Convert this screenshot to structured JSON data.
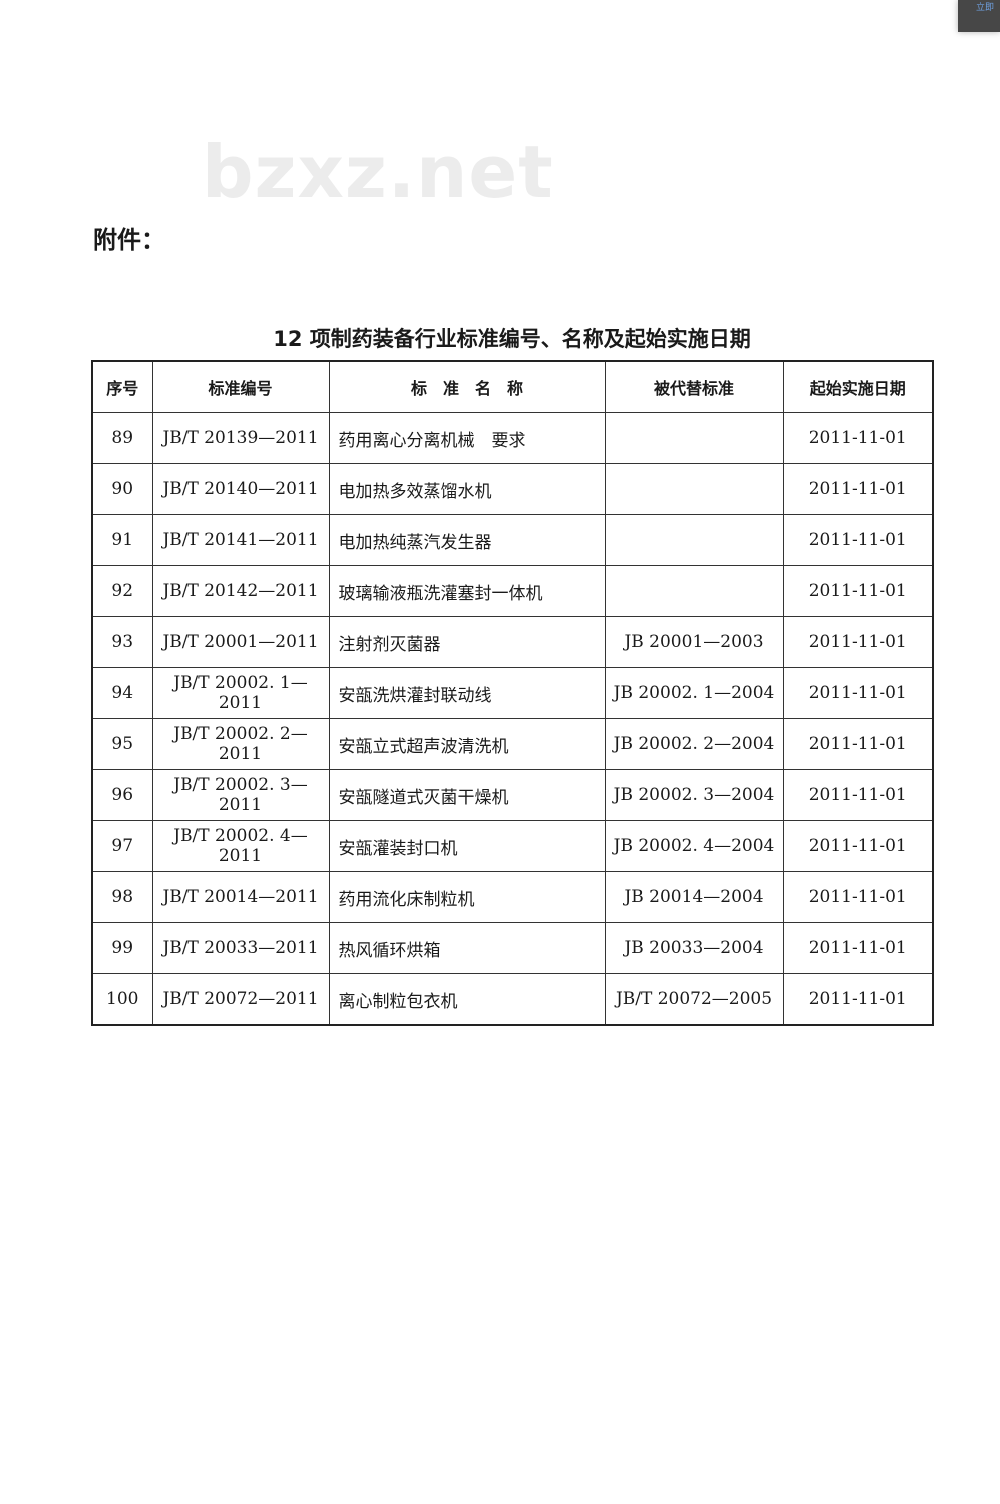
{
  "corner_badge": "立即",
  "watermark": "bzxz.net",
  "attachment_label": "附件：",
  "title": "12 项制药装备行业标准编号、名称及起始实施日期",
  "table": {
    "headers": [
      "序号",
      "标准编号",
      "标　准　名　称",
      "被代替标准",
      "起始实施日期"
    ],
    "rows": [
      [
        "89",
        "JB/T 20139—2011",
        "药用离心分离机械　要求",
        "",
        "2011-11-01"
      ],
      [
        "90",
        "JB/T 20140—2011",
        "电加热多效蒸馏水机",
        "",
        "2011-11-01"
      ],
      [
        "91",
        "JB/T 20141—2011",
        "电加热纯蒸汽发生器",
        "",
        "2011-11-01"
      ],
      [
        "92",
        "JB/T 20142—2011",
        "玻璃输液瓶洗灌塞封一体机",
        "",
        "2011-11-01"
      ],
      [
        "93",
        "JB/T 20001—2011",
        "注射剂灭菌器",
        "JB 20001—2003",
        "2011-11-01"
      ],
      [
        "94",
        "JB/T 20002. 1—2011",
        "安瓿洗烘灌封联动线",
        "JB 20002. 1—2004",
        "2011-11-01"
      ],
      [
        "95",
        "JB/T 20002. 2—2011",
        "安瓿立式超声波清洗机",
        "JB 20002. 2—2004",
        "2011-11-01"
      ],
      [
        "96",
        "JB/T 20002. 3—2011",
        "安瓿隧道式灭菌干燥机",
        "JB 20002. 3—2004",
        "2011-11-01"
      ],
      [
        "97",
        "JB/T 20002. 4—2011",
        "安瓿灌装封口机",
        "JB 20002. 4—2004",
        "2011-11-01"
      ],
      [
        "98",
        "JB/T 20014—2011",
        "药用流化床制粒机",
        "JB 20014—2004",
        "2011-11-01"
      ],
      [
        "99",
        "JB/T 20033—2011",
        "热风循环烘箱",
        "JB 20033—2004",
        "2011-11-01"
      ],
      [
        "100",
        "JB/T 20072—2011",
        "离心制粒包衣机",
        "JB/T 20072—2005",
        "2011-11-01"
      ]
    ]
  }
}
